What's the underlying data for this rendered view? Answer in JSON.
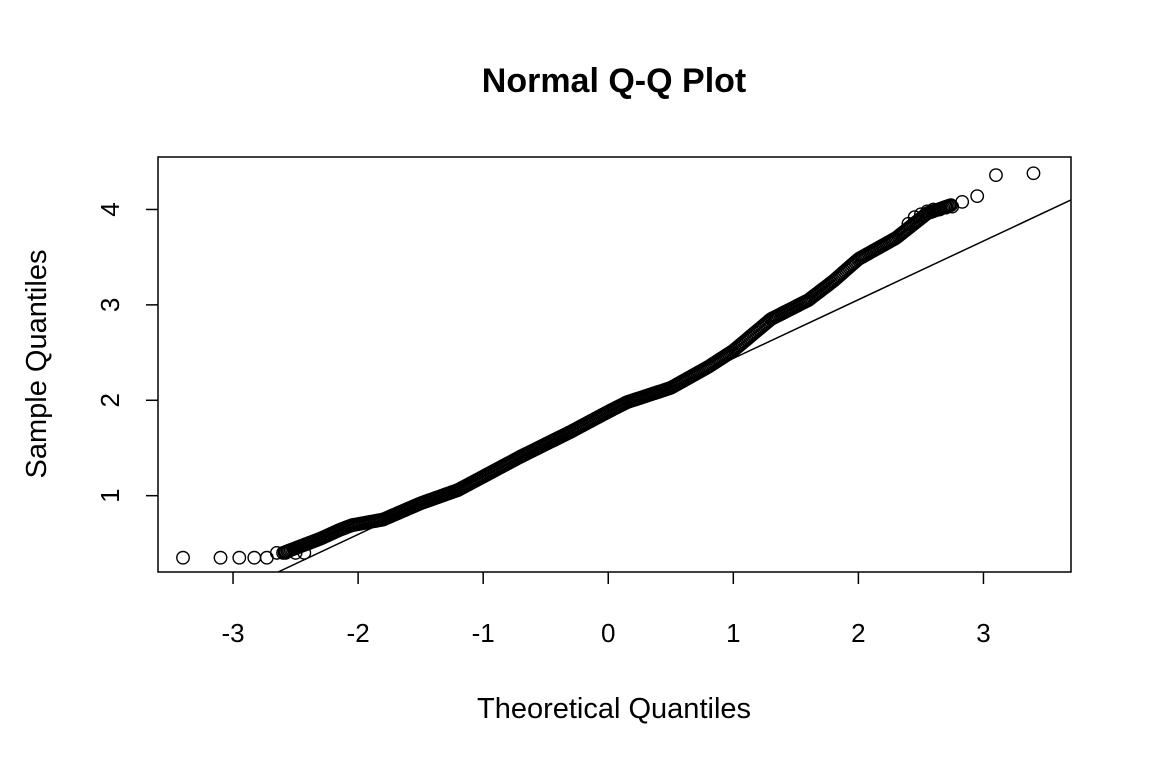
{
  "chart_data": {
    "type": "scatter",
    "title": "Normal Q-Q Plot",
    "xlabel": "Theoretical Quantiles",
    "ylabel": "Sample Quantiles",
    "xlim": [
      -3.6,
      3.7
    ],
    "ylim": [
      0.2,
      4.55
    ],
    "x_ticks": [
      -3,
      -2,
      -1,
      0,
      1,
      2,
      3
    ],
    "y_ticks": [
      1,
      2,
      3,
      4
    ],
    "grid": false,
    "legend": "none",
    "marker": "open-circle",
    "reference_line": {
      "x1": -2.64,
      "y1": 0.2,
      "x2": 3.7,
      "y2": 4.1
    },
    "quantile_curve": [
      [
        -2.6,
        0.4
      ],
      [
        -2.3,
        0.55
      ],
      [
        -2.15,
        0.64
      ],
      [
        -2.05,
        0.69
      ],
      [
        -1.8,
        0.75
      ],
      [
        -1.5,
        0.92
      ],
      [
        -1.2,
        1.06
      ],
      [
        -1.0,
        1.2
      ],
      [
        -0.7,
        1.41
      ],
      [
        -0.3,
        1.67
      ],
      [
        0.0,
        1.88
      ],
      [
        0.15,
        1.98
      ],
      [
        0.5,
        2.13
      ],
      [
        0.8,
        2.35
      ],
      [
        1.0,
        2.52
      ],
      [
        1.3,
        2.85
      ],
      [
        1.6,
        3.05
      ],
      [
        1.8,
        3.25
      ],
      [
        2.0,
        3.48
      ],
      [
        2.3,
        3.7
      ],
      [
        2.55,
        3.96
      ],
      [
        2.75,
        4.05
      ]
    ],
    "tail_points": [
      [
        -3.4,
        0.35
      ],
      [
        -3.1,
        0.35
      ],
      [
        -2.95,
        0.35
      ],
      [
        -2.83,
        0.35
      ],
      [
        -2.73,
        0.35
      ],
      [
        -2.65,
        0.4
      ],
      [
        -2.58,
        0.4
      ],
      [
        -2.5,
        0.4
      ],
      [
        -2.43,
        0.4
      ],
      [
        2.4,
        3.85
      ],
      [
        2.45,
        3.92
      ],
      [
        2.5,
        3.95
      ],
      [
        2.55,
        3.98
      ],
      [
        2.6,
        4.0
      ],
      [
        2.65,
        4.0
      ],
      [
        2.7,
        4.02
      ],
      [
        2.75,
        4.03
      ],
      [
        2.83,
        4.08
      ],
      [
        2.95,
        4.14
      ],
      [
        3.1,
        4.36
      ],
      [
        3.4,
        4.38
      ]
    ]
  }
}
